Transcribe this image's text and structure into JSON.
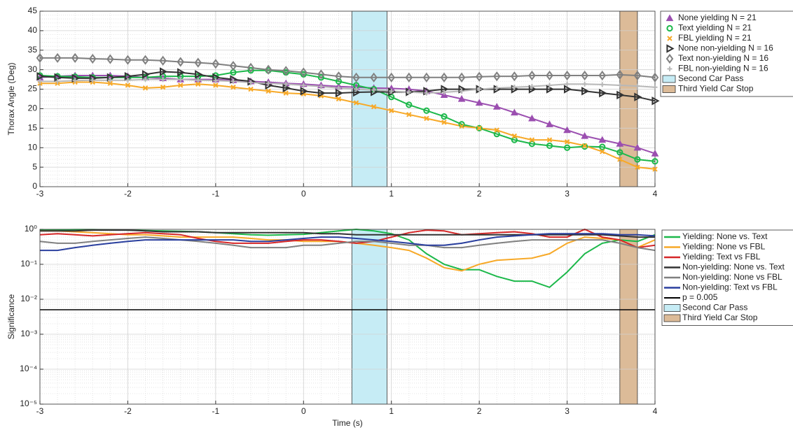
{
  "chart_data": [
    {
      "type": "line",
      "ylabel": "Thorax Angle (Deg)",
      "xlim": [
        -3,
        4
      ],
      "xticks": [
        -3,
        -2,
        -1,
        0,
        1,
        2,
        3,
        4
      ],
      "ylim": [
        0,
        45
      ],
      "yticks": [
        0,
        5,
        10,
        15,
        20,
        25,
        30,
        35,
        40,
        45
      ],
      "grid": true,
      "minor_grid": true,
      "legend": "outside-right",
      "x": [
        -3,
        -2.8,
        -2.6,
        -2.4,
        -2.2,
        -2,
        -1.8,
        -1.6,
        -1.4,
        -1.2,
        -1,
        -0.8,
        -0.6,
        -0.4,
        -0.2,
        0,
        0.2,
        0.4,
        0.6,
        0.8,
        1,
        1.2,
        1.4,
        1.6,
        1.8,
        2,
        2.2,
        2.4,
        2.6,
        2.8,
        3,
        3.2,
        3.4,
        3.6,
        3.8,
        4
      ],
      "series": [
        {
          "name": "None yielding N = 21",
          "color": "#9b4fb0",
          "marker": "triangle",
          "values": [
            28,
            28.3,
            28.5,
            28.5,
            28.5,
            28.3,
            28,
            27.8,
            27.5,
            27.5,
            27.5,
            27.3,
            27,
            26.8,
            26.5,
            26.3,
            26,
            25.7,
            25.5,
            25.3,
            25.2,
            25,
            24.5,
            23.5,
            22.5,
            21.5,
            20.5,
            19,
            17.5,
            16,
            14.5,
            13,
            12,
            11,
            10,
            8.5
          ]
        },
        {
          "name": "Text yielding N = 21",
          "color": "#1cb84a",
          "marker": "circle",
          "values": [
            28.5,
            28.3,
            28.2,
            28,
            28,
            28,
            28,
            28.3,
            28.3,
            28.3,
            28.5,
            29.3,
            29.8,
            29.8,
            29.3,
            28.8,
            28,
            27,
            26,
            25,
            23,
            21,
            19.5,
            18,
            16,
            15,
            13.5,
            12,
            11,
            10.5,
            10,
            10.3,
            10.2,
            8.8,
            7,
            6.5
          ]
        },
        {
          "name": "FBL yielding N = 21",
          "color": "#f7a928",
          "marker": "x",
          "values": [
            26.5,
            26.5,
            26.8,
            26.8,
            26.5,
            26,
            25.3,
            25.5,
            26,
            26.3,
            26,
            25.5,
            25,
            24.5,
            24,
            23.8,
            23.3,
            22.5,
            21.5,
            20.5,
            19.5,
            18.5,
            17.5,
            16.5,
            15.5,
            15,
            14.5,
            13,
            12,
            12,
            11.5,
            10.5,
            9,
            7,
            5,
            4.5
          ]
        },
        {
          "name": "None non-yielding N = 16",
          "color": "#333333",
          "marker": "right-triangle",
          "values": [
            28.3,
            28,
            27.8,
            27.8,
            28,
            28.3,
            28.8,
            29.5,
            29.3,
            28.8,
            28,
            27.5,
            27,
            26,
            25.3,
            24.5,
            24,
            24,
            24.2,
            24.3,
            24.3,
            24.3,
            24.5,
            25,
            25,
            25,
            25,
            25,
            25,
            25,
            25,
            24.5,
            24,
            23.5,
            23,
            22
          ]
        },
        {
          "name": "Text non-yielding N = 16",
          "color": "#808080",
          "marker": "diamond",
          "values": [
            33,
            33,
            33,
            32.8,
            32.7,
            32.5,
            32.5,
            32.3,
            32,
            31.8,
            31.5,
            31,
            30.5,
            30,
            29.7,
            29.3,
            28.8,
            28.3,
            28,
            28,
            28,
            28,
            28,
            28,
            28,
            28.2,
            28.3,
            28.3,
            28.5,
            28.5,
            28.5,
            28.5,
            28.5,
            28.7,
            28.5,
            28
          ]
        },
        {
          "name": "FBL non-yielding N = 16",
          "color": "#b8b8b8",
          "marker": "plus",
          "values": [
            27,
            27,
            27.2,
            27.3,
            27.3,
            27.3,
            27.5,
            27.5,
            27.5,
            27.3,
            27.2,
            27,
            26.7,
            26.5,
            26.3,
            26,
            25.7,
            25.3,
            25,
            24.8,
            24.5,
            24.3,
            24,
            24.2,
            24.5,
            25,
            25.3,
            25.5,
            25.7,
            26,
            26.3,
            26.3,
            26.2,
            26,
            25.8,
            25.5
          ]
        }
      ],
      "regions": [
        {
          "name": "Second Car Pass",
          "x": [
            0.55,
            0.95
          ],
          "color": "#c6ecf5"
        },
        {
          "name": "Third Yield Car Stop",
          "x": [
            3.6,
            3.8
          ],
          "color": "#dcbb98"
        }
      ]
    },
    {
      "type": "line",
      "log_y": true,
      "ylabel": "Significance",
      "xlabel": "Time (s)",
      "xlim": [
        -3,
        4
      ],
      "xticks": [
        -3,
        -2,
        -1,
        0,
        1,
        2,
        3,
        4
      ],
      "ylim": [
        1e-05,
        1
      ],
      "yticks": [
        {
          "value": 1e-05,
          "label": "10⁻⁵"
        },
        {
          "value": 0.0001,
          "label": "10⁻⁴"
        },
        {
          "value": 0.001,
          "label": "10⁻³"
        },
        {
          "value": 0.01,
          "label": "10⁻²"
        },
        {
          "value": 0.1,
          "label": "10⁻¹"
        },
        {
          "value": 1,
          "label": "10⁰"
        }
      ],
      "grid": true,
      "minor_grid": true,
      "legend": "outside-right",
      "x": [
        -3,
        -2.8,
        -2.6,
        -2.4,
        -2.2,
        -2,
        -1.8,
        -1.6,
        -1.4,
        -1.2,
        -1,
        -0.8,
        -0.6,
        -0.4,
        -0.2,
        0,
        0.2,
        0.4,
        0.6,
        0.8,
        1,
        1.2,
        1.4,
        1.6,
        1.8,
        2,
        2.2,
        2.4,
        2.6,
        2.8,
        3,
        3.2,
        3.4,
        3.6,
        3.8,
        4
      ],
      "series": [
        {
          "name": "Yielding: None vs. Text",
          "color": "#1cb84a",
          "values": [
            0.95,
            0.97,
            0.98,
            0.98,
            0.97,
            0.95,
            0.92,
            0.9,
            0.88,
            0.85,
            0.8,
            0.75,
            0.7,
            0.68,
            0.7,
            0.72,
            0.8,
            0.9,
            1.0,
            0.9,
            0.75,
            0.5,
            0.2,
            0.1,
            0.07,
            0.07,
            0.045,
            0.033,
            0.033,
            0.022,
            0.06,
            0.2,
            0.4,
            0.5,
            0.45,
            0.7
          ]
        },
        {
          "name": "Yielding: None vs FBL",
          "color": "#f7a928",
          "values": [
            0.9,
            0.9,
            0.85,
            0.8,
            0.75,
            0.7,
            0.7,
            0.65,
            0.6,
            0.6,
            0.6,
            0.6,
            0.55,
            0.5,
            0.5,
            0.45,
            0.45,
            0.45,
            0.4,
            0.35,
            0.3,
            0.25,
            0.15,
            0.08,
            0.065,
            0.1,
            0.13,
            0.14,
            0.15,
            0.2,
            0.4,
            0.6,
            0.55,
            0.5,
            0.3,
            0.5
          ]
        },
        {
          "name": "Yielding: Text vs FBL",
          "color": "#d62728",
          "values": [
            0.7,
            0.75,
            0.7,
            0.65,
            0.7,
            0.75,
            0.8,
            0.75,
            0.7,
            0.55,
            0.45,
            0.4,
            0.4,
            0.4,
            0.45,
            0.5,
            0.5,
            0.45,
            0.4,
            0.45,
            0.6,
            0.8,
            0.95,
            0.9,
            0.7,
            0.75,
            0.8,
            0.85,
            0.75,
            0.6,
            0.6,
            1.0,
            0.6,
            0.5,
            0.3,
            0.35
          ]
        },
        {
          "name": "Non-yielding: None vs. Text",
          "color": "#333333",
          "values": [
            0.9,
            0.9,
            0.9,
            0.95,
            0.95,
            0.95,
            0.9,
            0.85,
            0.85,
            0.85,
            0.8,
            0.8,
            0.8,
            0.8,
            0.8,
            0.8,
            0.75,
            0.75,
            0.7,
            0.7,
            0.7,
            0.7,
            0.7,
            0.7,
            0.7,
            0.7,
            0.7,
            0.7,
            0.7,
            0.7,
            0.7,
            0.7,
            0.7,
            0.65,
            0.6,
            0.6
          ]
        },
        {
          "name": "Non-yielding: None vs FBL",
          "color": "#808080",
          "values": [
            0.45,
            0.4,
            0.4,
            0.45,
            0.5,
            0.55,
            0.6,
            0.55,
            0.5,
            0.45,
            0.4,
            0.35,
            0.3,
            0.3,
            0.3,
            0.35,
            0.35,
            0.4,
            0.45,
            0.45,
            0.4,
            0.35,
            0.35,
            0.3,
            0.3,
            0.35,
            0.4,
            0.45,
            0.5,
            0.5,
            0.5,
            0.5,
            0.5,
            0.4,
            0.3,
            0.25
          ]
        },
        {
          "name": "Non-yielding: Text vs FBL",
          "color": "#2a3f9e",
          "values": [
            0.25,
            0.25,
            0.3,
            0.35,
            0.4,
            0.45,
            0.5,
            0.5,
            0.5,
            0.5,
            0.5,
            0.5,
            0.45,
            0.45,
            0.5,
            0.55,
            0.6,
            0.6,
            0.55,
            0.5,
            0.45,
            0.4,
            0.35,
            0.35,
            0.4,
            0.5,
            0.6,
            0.65,
            0.7,
            0.75,
            0.75,
            0.75,
            0.75,
            0.7,
            0.7,
            0.65
          ]
        }
      ],
      "hline": {
        "name": "p = 0.005",
        "value": 0.005,
        "color": "#000000"
      },
      "regions": [
        {
          "name": "Second Car Pass",
          "x": [
            0.55,
            0.95
          ],
          "color": "#c6ecf5"
        },
        {
          "name": "Third Yield Car Stop",
          "x": [
            3.6,
            3.8
          ],
          "color": "#dcbb98"
        }
      ]
    }
  ]
}
